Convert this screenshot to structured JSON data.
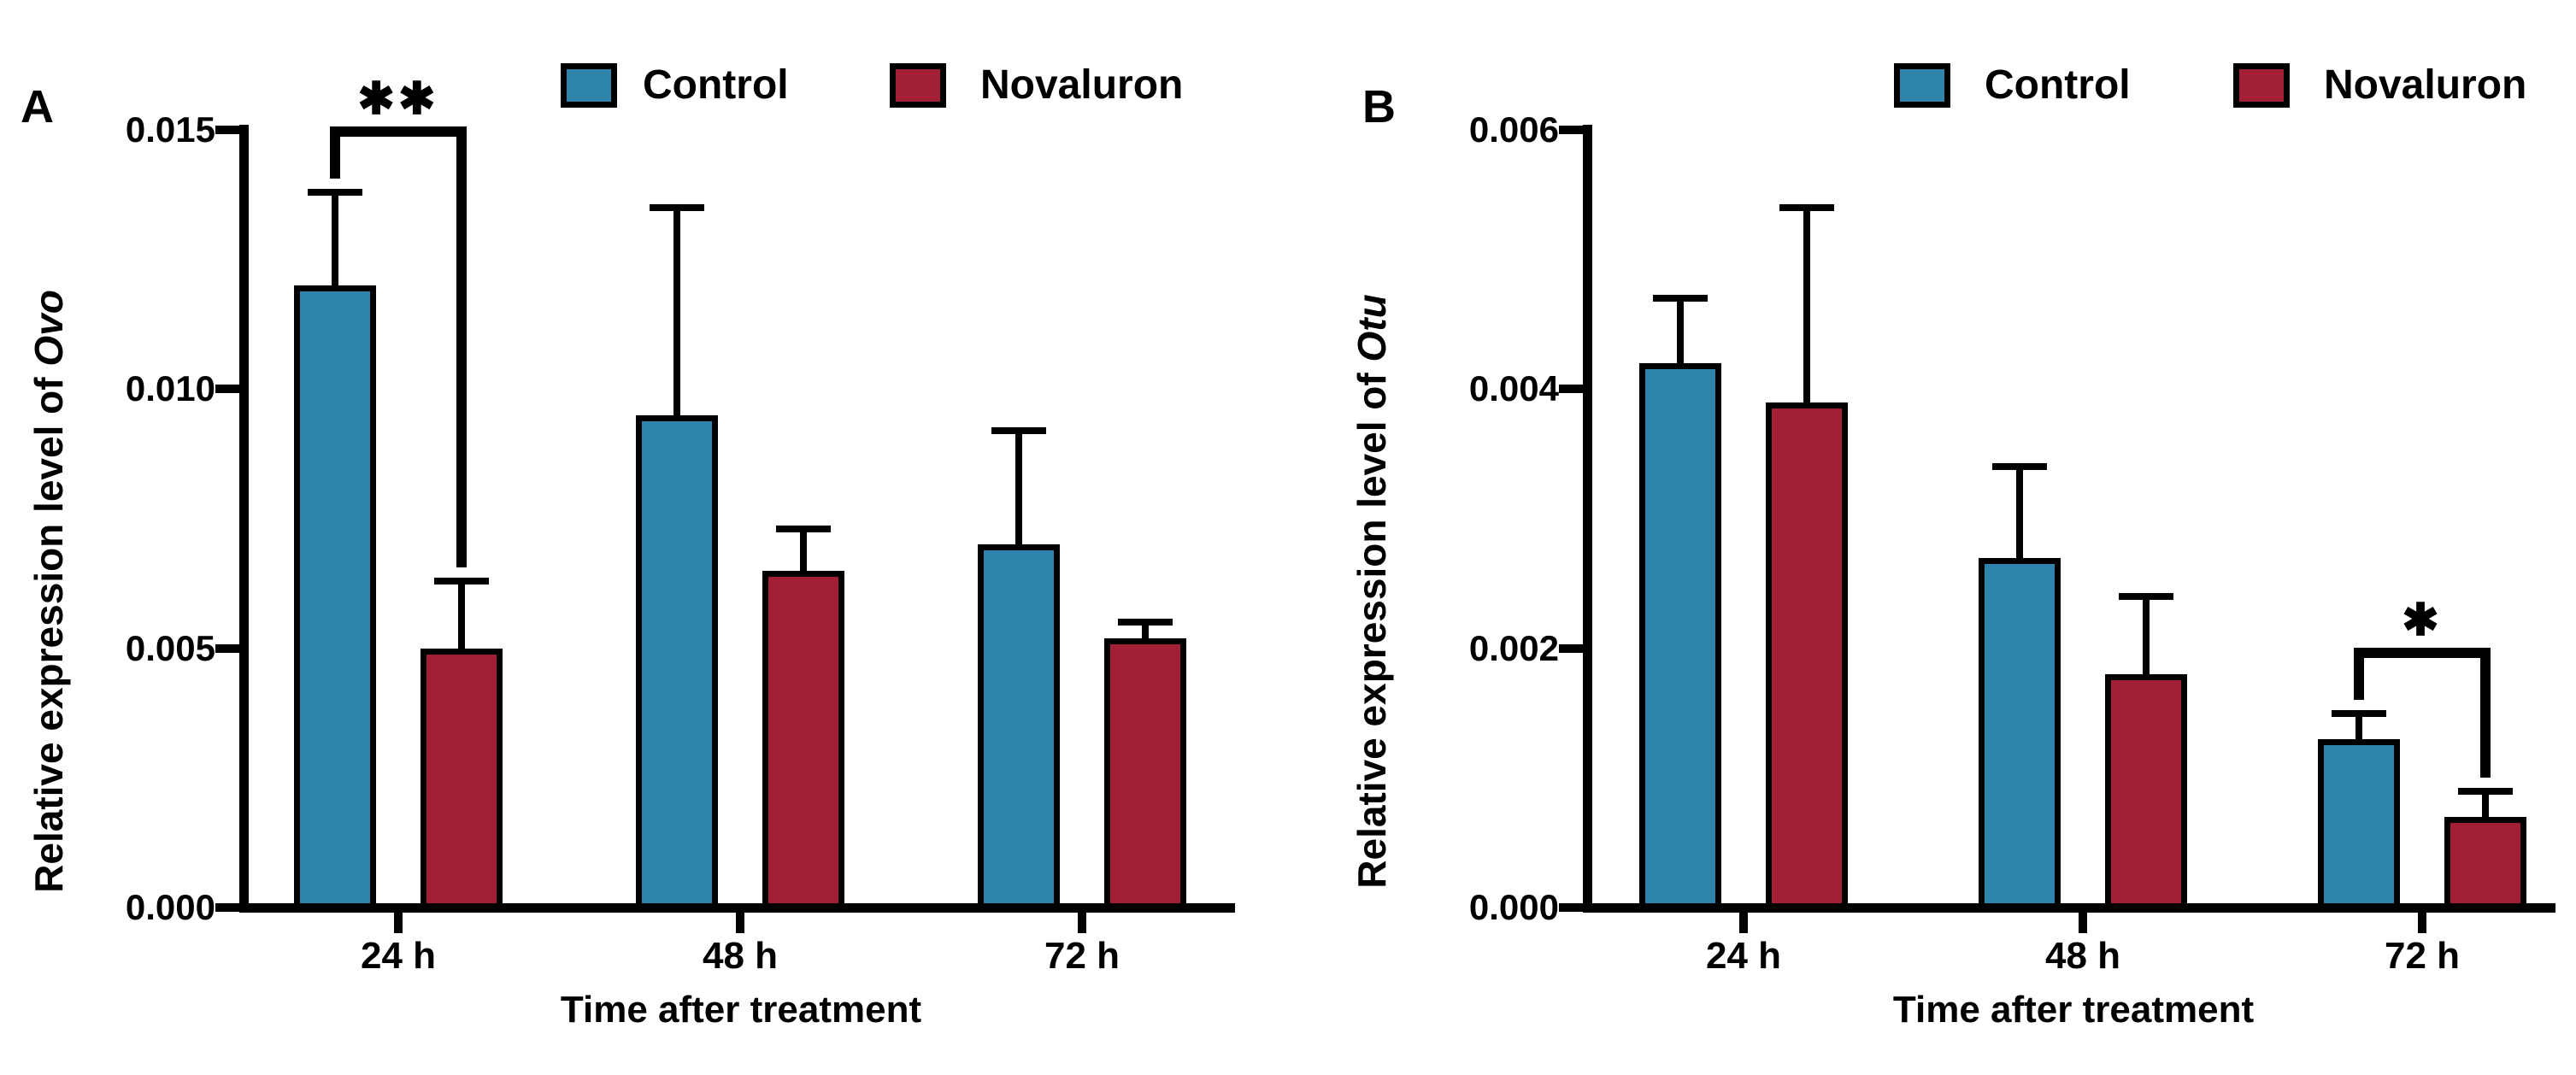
{
  "colors": {
    "control": "#2E85AC",
    "novaluron": "#A22036",
    "axis": "#000000",
    "background": "#FFFFFF"
  },
  "chart_data": [
    {
      "type": "bar",
      "panel_label": "A",
      "title": "",
      "ylabel_prefix": "Relative expression level of ",
      "ylabel_gene": "Ovo",
      "xlabel": "Time after treatment",
      "categories": [
        "24 h",
        "48 h",
        "72 h"
      ],
      "series": [
        {
          "name": "Control",
          "color_key": "control",
          "values": [
            0.012,
            0.0095,
            0.007
          ],
          "error_tops": [
            0.0138,
            0.0135,
            0.0092
          ]
        },
        {
          "name": "Novaluron",
          "color_key": "novaluron",
          "values": [
            0.005,
            0.0065,
            0.0052
          ],
          "error_tops": [
            0.0063,
            0.0073,
            0.0055
          ]
        }
      ],
      "ylim": [
        0,
        0.015
      ],
      "yticks": [
        0.015,
        0.01,
        0.005,
        0.0
      ],
      "ytick_labels": [
        "0.015",
        "0.010",
        "0.005",
        "0.000"
      ],
      "grid": false,
      "legend_position": "top",
      "significance": [
        {
          "category_index": 0,
          "label": "**"
        }
      ]
    },
    {
      "type": "bar",
      "panel_label": "B",
      "title": "",
      "ylabel_prefix": "Relative expression level of ",
      "ylabel_gene": "Otu",
      "xlabel": "Time after treatment",
      "categories": [
        "24 h",
        "48 h",
        "72 h"
      ],
      "series": [
        {
          "name": "Control",
          "color_key": "control",
          "values": [
            0.0042,
            0.0027,
            0.0013
          ],
          "error_tops": [
            0.0047,
            0.0034,
            0.0015
          ]
        },
        {
          "name": "Novaluron",
          "color_key": "novaluron",
          "values": [
            0.0039,
            0.0018,
            0.0007
          ],
          "error_tops": [
            0.0054,
            0.0024,
            0.0009
          ]
        }
      ],
      "ylim": [
        0,
        0.006
      ],
      "yticks": [
        0.006,
        0.004,
        0.002,
        0.0
      ],
      "ytick_labels": [
        "0.006",
        "0.004",
        "0.002",
        "0.000"
      ],
      "grid": false,
      "legend_position": "top",
      "significance": [
        {
          "category_index": 2,
          "label": "*"
        }
      ]
    }
  ]
}
